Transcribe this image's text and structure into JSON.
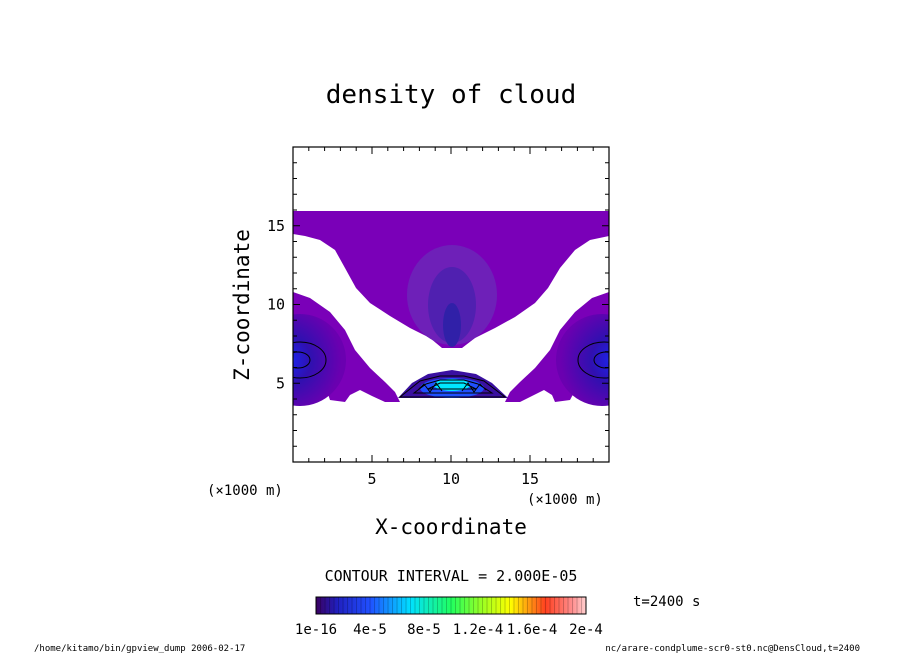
{
  "chart_data": {
    "type": "heatmap",
    "title": "density of cloud",
    "xlabel": "X-coordinate",
    "ylabel": "Z-coordinate",
    "x_unit": "(×1000 m)",
    "y_unit": "(×1000 m)",
    "xlim": [
      0,
      20
    ],
    "ylim": [
      0,
      20
    ],
    "x_ticks": [
      5,
      10,
      15
    ],
    "y_ticks": [
      5,
      10,
      15
    ],
    "contour_interval_label": "CONTOUR INTERVAL = 2.000E-05",
    "time_label": "t=2400 s",
    "colorbar": {
      "range": [
        1e-16,
        0.0002
      ],
      "tick_labels": [
        "1e-16",
        "4e-5",
        "8e-5",
        "1.2e-4",
        "1.6e-4",
        "2e-4"
      ],
      "colors": [
        "#4b0082",
        "#0000ff",
        "#00ffff",
        "#00ff00",
        "#ffff00",
        "#ff0000",
        "#ffc0c0"
      ]
    },
    "features": {
      "upper_layer_top_km": 16,
      "upper_layer_bottom_km": 14,
      "central_core_km": [
        10,
        4.5
      ],
      "side_cores_km": [
        [
          0.5,
          6.3
        ],
        [
          19.5,
          6.3
        ]
      ],
      "max_density": 0.00012
    }
  },
  "footer": {
    "left": "/home/kitamo/bin/gpview_dump  2006-02-17",
    "right": "nc/arare-condplume-scr0-st0.nc@DensCloud,t=2400"
  }
}
